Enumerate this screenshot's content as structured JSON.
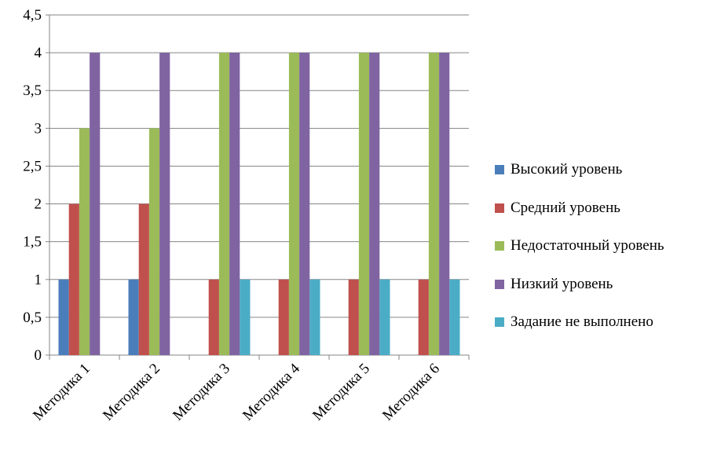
{
  "chart_data": {
    "type": "bar",
    "title": "",
    "xlabel": "",
    "ylabel": "",
    "categories": [
      "Методика 1",
      "Методика 2",
      "Методика 3",
      "Методика 4",
      "Методика 5",
      "Методика 6"
    ],
    "ylim": [
      0,
      4.5
    ],
    "yticks": [
      "0",
      "0,5",
      "1",
      "1,5",
      "2",
      "2,5",
      "3",
      "3,5",
      "4",
      "4,5"
    ],
    "grid": true,
    "legend_position": "right",
    "series": [
      {
        "name": "Высокий уровень",
        "color": "#4a7ebb",
        "values": [
          1,
          1,
          0,
          0,
          0,
          0
        ]
      },
      {
        "name": "Средний уровень",
        "color": "#c0504d",
        "values": [
          2,
          2,
          1,
          1,
          1,
          1
        ]
      },
      {
        "name": "Недостаточный уровень",
        "color": "#9bbb59",
        "values": [
          3,
          3,
          4,
          4,
          4,
          4
        ]
      },
      {
        "name": "Низкий уровень",
        "color": "#8064a2",
        "values": [
          4,
          4,
          4,
          4,
          4,
          4
        ]
      },
      {
        "name": "Задание не выполнено",
        "color": "#4bacc6",
        "values": [
          0,
          0,
          1,
          1,
          1,
          1
        ]
      }
    ]
  }
}
